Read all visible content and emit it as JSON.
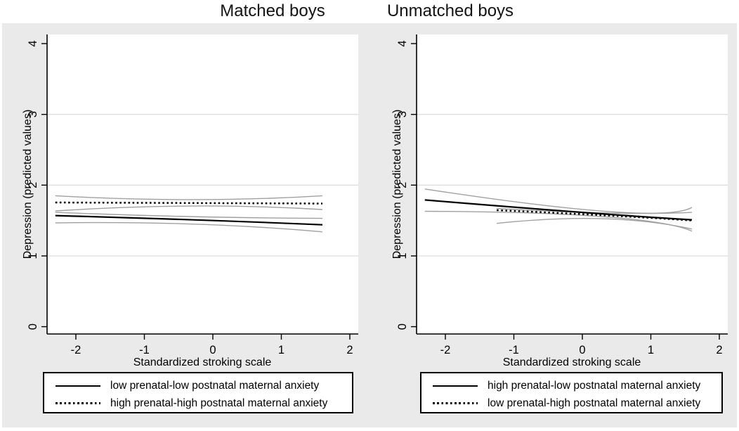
{
  "figure": {
    "titles": [
      "Matched boys",
      "Unmatched boys"
    ],
    "colors": {
      "panel_bg": "#eaeaea",
      "plot_bg": "#ffffff",
      "grid": "#dedede",
      "axis": "#000000",
      "line": "#000000",
      "ci": "#a0a0a0",
      "legend_border": "#000000"
    }
  },
  "chart_data": [
    {
      "type": "line",
      "title": "Matched boys",
      "xlabel": "Standardized stroking scale",
      "ylabel": "Depression (predicted values)",
      "xlim": [
        -2.4,
        2.1
      ],
      "ylim": [
        0,
        4
      ],
      "xticks": [
        "-2",
        "-1",
        "0",
        "1",
        "2"
      ],
      "xtick_values": [
        -2,
        -1,
        0,
        1,
        2
      ],
      "yticks": [
        "0",
        "1",
        "2",
        "3",
        "4"
      ],
      "ytick_values": [
        0,
        1,
        2,
        3,
        4
      ],
      "gridlines": [
        1,
        2,
        3
      ],
      "grid": "horizontal",
      "legend_position": "below",
      "series": [
        {
          "name": "ci-upper-dotted",
          "style": "ci",
          "points": [
            [
              -2.3,
              1.85
            ],
            [
              -0.3,
              1.795
            ],
            [
              1.6,
              1.85
            ]
          ]
        },
        {
          "name": "ci-lower-dotted",
          "style": "ci",
          "points": [
            [
              -2.3,
              1.635
            ],
            [
              -0.3,
              1.705
            ],
            [
              1.6,
              1.655
            ]
          ]
        },
        {
          "name": "ci-upper-solid",
          "style": "ci",
          "points": [
            [
              -2.3,
              1.615
            ],
            [
              -0.3,
              1.555
            ],
            [
              1.6,
              1.53
            ]
          ]
        },
        {
          "name": "ci-lower-solid",
          "style": "ci",
          "points": [
            [
              -2.3,
              1.465
            ],
            [
              -0.3,
              1.45
            ],
            [
              1.6,
              1.34
            ]
          ]
        },
        {
          "name": "low prenatal-low postnatal maternal anxiety",
          "style": "solid",
          "points": [
            [
              -2.3,
              1.57
            ],
            [
              -0.3,
              1.51
            ],
            [
              1.6,
              1.44
            ]
          ]
        },
        {
          "name": "high prenatal-high postnatal maternal anxiety",
          "style": "dotted",
          "points": [
            [
              -2.3,
              1.755
            ],
            [
              1.6,
              1.74
            ]
          ]
        }
      ],
      "legend": [
        {
          "style": "solid",
          "label": "low prenatal-low postnatal maternal anxiety"
        },
        {
          "style": "dotted",
          "label": "high prenatal-high postnatal maternal anxiety"
        }
      ]
    },
    {
      "type": "line",
      "title": "Unmatched boys",
      "xlabel": "Standardized stroking scale",
      "ylabel": "Depression (predicted values)",
      "xlim": [
        -2.4,
        2.1
      ],
      "ylim": [
        0,
        4
      ],
      "xticks": [
        "-2",
        "-1",
        "0",
        "1",
        "2"
      ],
      "xtick_values": [
        -2,
        -1,
        0,
        1,
        2
      ],
      "yticks": [
        "0",
        "1",
        "2",
        "3",
        "4"
      ],
      "ytick_values": [
        0,
        1,
        2,
        3,
        4
      ],
      "gridlines": [
        1,
        2,
        3
      ],
      "grid": "horizontal",
      "legend_position": "below",
      "series": [
        {
          "name": "ci-upper-solid",
          "style": "ci",
          "points": [
            [
              -2.3,
              1.945
            ],
            [
              0.4,
              1.625
            ],
            [
              1.6,
              1.685
            ]
          ]
        },
        {
          "name": "ci-lower-solid",
          "style": "ci",
          "points": [
            [
              -2.3,
              1.63
            ],
            [
              0.3,
              1.555
            ],
            [
              1.6,
              1.35
            ]
          ]
        },
        {
          "name": "ci-upper-dotted",
          "style": "ci",
          "points": [
            [
              -1.25,
              1.67
            ],
            [
              0.4,
              1.605
            ],
            [
              1.6,
              1.615
            ]
          ]
        },
        {
          "name": "ci-lower-dotted",
          "style": "ci",
          "points": [
            [
              -1.25,
              1.46
            ],
            [
              0.3,
              1.525
            ],
            [
              1.6,
              1.38
            ]
          ]
        },
        {
          "name": "high prenatal-low postnatal maternal anxiety",
          "style": "solid",
          "points": [
            [
              -2.3,
              1.79
            ],
            [
              0,
              1.615
            ],
            [
              1.6,
              1.51
            ]
          ]
        },
        {
          "name": "low prenatal-high postnatal maternal anxiety",
          "style": "dotted",
          "points": [
            [
              -1.25,
              1.645
            ],
            [
              0.3,
              1.575
            ],
            [
              1.6,
              1.5
            ]
          ]
        }
      ],
      "legend": [
        {
          "style": "solid",
          "label": "high prenatal-low postnatal maternal anxiety"
        },
        {
          "style": "dotted",
          "label": "low prenatal-high postnatal maternal anxiety"
        }
      ]
    }
  ]
}
